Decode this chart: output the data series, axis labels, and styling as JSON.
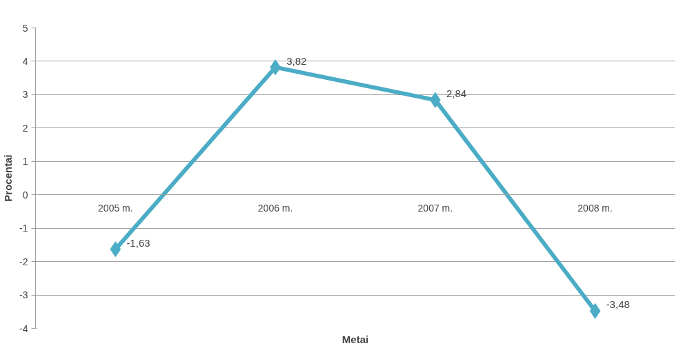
{
  "chart_data": {
    "type": "line",
    "xlabel": "Metai",
    "ylabel": "Procentai",
    "categories": [
      "2005 m.",
      "2006 m.",
      "2007 m.",
      "2008 m."
    ],
    "series": [
      {
        "color": "#4bacc6",
        "values": [
          -1.63,
          3.82,
          2.84,
          -3.48
        ],
        "value_labels": [
          "-1,63",
          "3,82",
          "2,84",
          "-3,48"
        ]
      }
    ],
    "ylim": [
      -4,
      5
    ],
    "yticks": [
      -4,
      -3,
      -2,
      -1,
      0,
      1,
      2,
      3,
      4,
      5
    ],
    "grid": "y",
    "marker": "diamond",
    "line_style": "solid"
  }
}
